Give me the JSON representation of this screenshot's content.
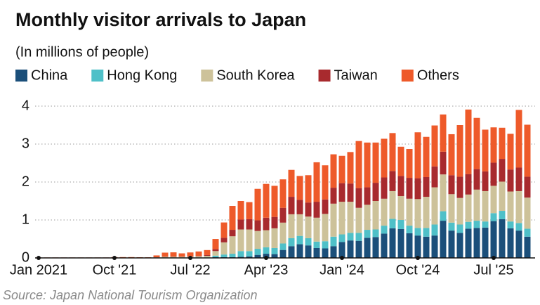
{
  "chart_data": {
    "type": "stacked_bar",
    "title": "Monthly visitor arrivals to Japan",
    "subtitle": "(In millions of people)",
    "source": "Source: Japan National Tourism Organization",
    "categories": [
      "Jan 2021",
      null,
      null,
      null,
      null,
      null,
      null,
      null,
      null,
      "Oct '21",
      null,
      null,
      null,
      null,
      null,
      null,
      null,
      null,
      "Jul '22",
      null,
      null,
      null,
      null,
      null,
      null,
      null,
      null,
      "Apr '23",
      null,
      null,
      null,
      null,
      null,
      null,
      null,
      null,
      "Jan '24",
      null,
      null,
      null,
      null,
      null,
      null,
      null,
      null,
      "Oct '24",
      null,
      null,
      null,
      null,
      null,
      null,
      null,
      null,
      "Jul '25",
      null,
      null,
      null,
      null
    ],
    "series": [
      {
        "name": "China",
        "color": "#1b4f7a",
        "values": [
          0.001,
          0.001,
          0.001,
          0.001,
          0.001,
          0.001,
          0.001,
          0.001,
          0.001,
          0.001,
          0.001,
          0.001,
          0.002,
          0.002,
          0.004,
          0.01,
          0.01,
          0.01,
          0.01,
          0.01,
          0.01,
          0.02,
          0.02,
          0.02,
          0.03,
          0.04,
          0.08,
          0.11,
          0.1,
          0.21,
          0.31,
          0.36,
          0.33,
          0.26,
          0.25,
          0.31,
          0.42,
          0.46,
          0.45,
          0.53,
          0.55,
          0.64,
          0.78,
          0.76,
          0.65,
          0.59,
          0.56,
          0.59,
          0.98,
          0.72,
          0.66,
          0.77,
          0.79,
          0.8,
          0.97,
          1.02,
          0.78,
          0.72,
          0.56
        ]
      },
      {
        "name": "Hong Kong",
        "color": "#4fc0c8",
        "values": [
          0,
          0,
          0,
          0,
          0,
          0,
          0,
          0,
          0,
          0,
          0,
          0,
          0,
          0,
          0,
          0,
          0,
          0,
          0,
          0.002,
          0.005,
          0.04,
          0.07,
          0.09,
          0.15,
          0.14,
          0.16,
          0.17,
          0.16,
          0.17,
          0.21,
          0.22,
          0.19,
          0.17,
          0.19,
          0.25,
          0.2,
          0.2,
          0.21,
          0.21,
          0.2,
          0.21,
          0.25,
          0.24,
          0.2,
          0.2,
          0.23,
          0.29,
          0.25,
          0.21,
          0.22,
          0.18,
          0.19,
          0.16,
          0.21,
          0.22,
          0.18,
          0.2,
          0.21
        ]
      },
      {
        "name": "South Korea",
        "color": "#cdc29a",
        "values": [
          0.001,
          0.001,
          0.001,
          0.001,
          0.001,
          0.001,
          0.001,
          0.001,
          0.001,
          0.001,
          0.001,
          0.001,
          0.003,
          0.002,
          0.01,
          0.02,
          0.02,
          0.02,
          0.02,
          0.03,
          0.04,
          0.12,
          0.32,
          0.46,
          0.57,
          0.57,
          0.47,
          0.45,
          0.52,
          0.55,
          0.63,
          0.57,
          0.57,
          0.63,
          0.72,
          0.87,
          0.86,
          0.82,
          0.66,
          0.66,
          0.75,
          0.71,
          0.73,
          0.63,
          0.71,
          0.76,
          0.82,
          0.98,
          0.97,
          0.75,
          0.7,
          0.72,
          0.82,
          0.8,
          0.72,
          0.77,
          0.79,
          0.84,
          0.82
        ]
      },
      {
        "name": "Taiwan",
        "color": "#a82a2e",
        "values": [
          0,
          0,
          0,
          0,
          0,
          0,
          0,
          0,
          0,
          0,
          0,
          0,
          0.001,
          0.001,
          0.003,
          0.005,
          0.005,
          0.005,
          0.01,
          0.01,
          0.02,
          0.05,
          0.12,
          0.17,
          0.26,
          0.27,
          0.28,
          0.33,
          0.3,
          0.39,
          0.46,
          0.38,
          0.37,
          0.42,
          0.38,
          0.42,
          0.49,
          0.48,
          0.52,
          0.46,
          0.48,
          0.56,
          0.53,
          0.53,
          0.55,
          0.55,
          0.52,
          0.55,
          0.6,
          0.5,
          0.56,
          0.54,
          0.54,
          0.52,
          0.61,
          0.6,
          0.58,
          0.62,
          0.55
        ]
      },
      {
        "name": "Others",
        "color": "#ee5a2a",
        "values": [
          0.01,
          0.01,
          0.01,
          0.01,
          0.01,
          0.01,
          0.01,
          0.01,
          0.01,
          0.02,
          0.02,
          0.02,
          0.012,
          0.012,
          0.049,
          0.104,
          0.112,
          0.085,
          0.104,
          0.118,
          0.132,
          0.269,
          0.404,
          0.63,
          0.49,
          0.45,
          0.83,
          0.89,
          0.82,
          0.75,
          0.71,
          0.63,
          0.72,
          1.04,
          0.9,
          0.88,
          0.72,
          0.83,
          1.24,
          1.18,
          1.06,
          1.02,
          1.0,
          0.77,
          0.76,
          1.21,
          1.06,
          1.08,
          0.98,
          1.08,
          1.36,
          1.7,
          1.35,
          1.1,
          0.93,
          0.82,
          0.94,
          1.52,
          1.37
        ]
      }
    ],
    "ylim": [
      0,
      4
    ],
    "yticks": [
      0,
      1,
      2,
      3,
      4
    ],
    "grid": true,
    "legend": "top"
  }
}
